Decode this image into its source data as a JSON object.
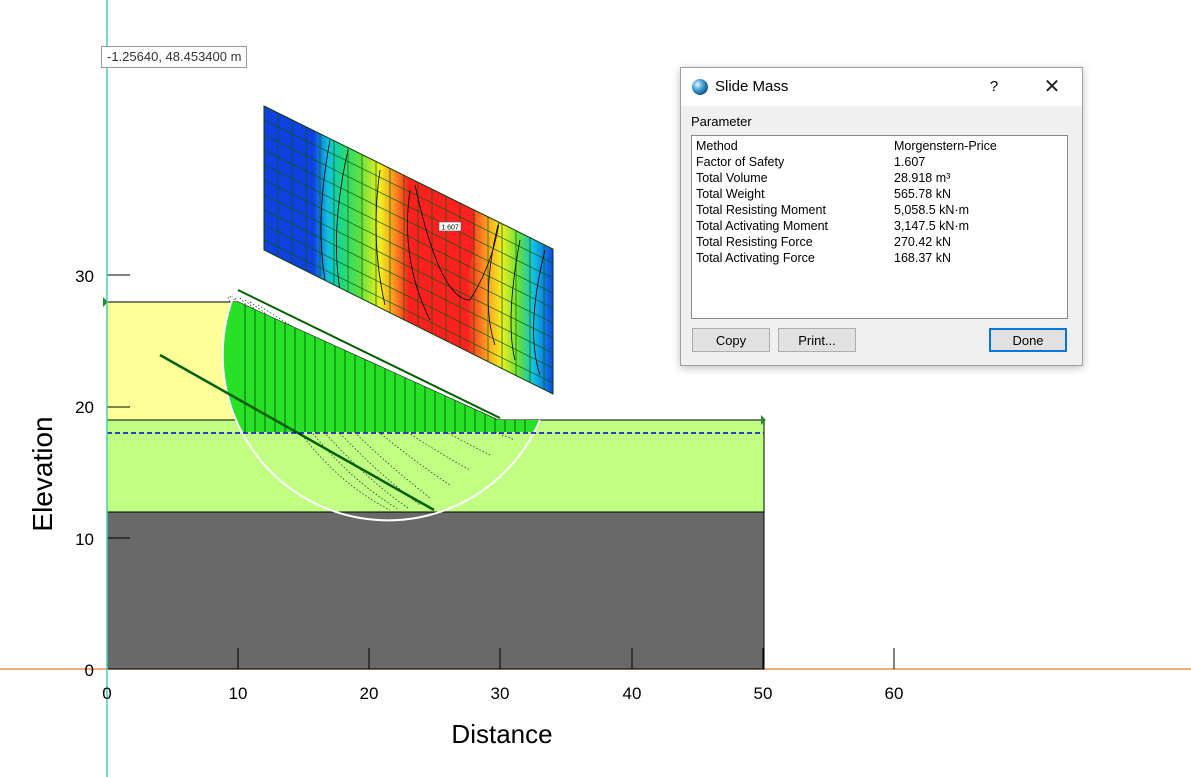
{
  "cursor_readout": "-1.25640, 48.453400 m",
  "axes": {
    "xlabel": "Distance",
    "ylabel": "Elevation",
    "x_ticks": [
      "0",
      "10",
      "20",
      "30",
      "40",
      "50",
      "60"
    ],
    "y_ticks": [
      "0",
      "10",
      "20",
      "30"
    ]
  },
  "contour_label": "1.607",
  "colors": {
    "upper_layer": "#ffff99",
    "middle_layer": "#c1ff82",
    "bedrock": "#696969",
    "slide_mass": "#27e027",
    "water_table": "#0000c0",
    "cursor_line": "#40d0b0",
    "ground_line": "#e8904f"
  },
  "dialog": {
    "title": "Slide Mass",
    "help_label": "?",
    "close_label": "✕",
    "header": "Parameter",
    "rows": [
      {
        "key": "Method",
        "value": "Morgenstern-Price"
      },
      {
        "key": "Factor of Safety",
        "value": "1.607"
      },
      {
        "key": "Total Volume",
        "value": "28.918 m³"
      },
      {
        "key": "Total Weight",
        "value": "565.78 kN"
      },
      {
        "key": "Total Resisting Moment",
        "value": "5,058.5 kN·m"
      },
      {
        "key": "Total Activating Moment",
        "value": "3,147.5 kN·m"
      },
      {
        "key": "Total Resisting Force",
        "value": "270.42 kN"
      },
      {
        "key": "Total Activating Force",
        "value": "168.37 kN"
      }
    ],
    "buttons": {
      "copy": "Copy",
      "print": "Print...",
      "done": "Done"
    }
  }
}
